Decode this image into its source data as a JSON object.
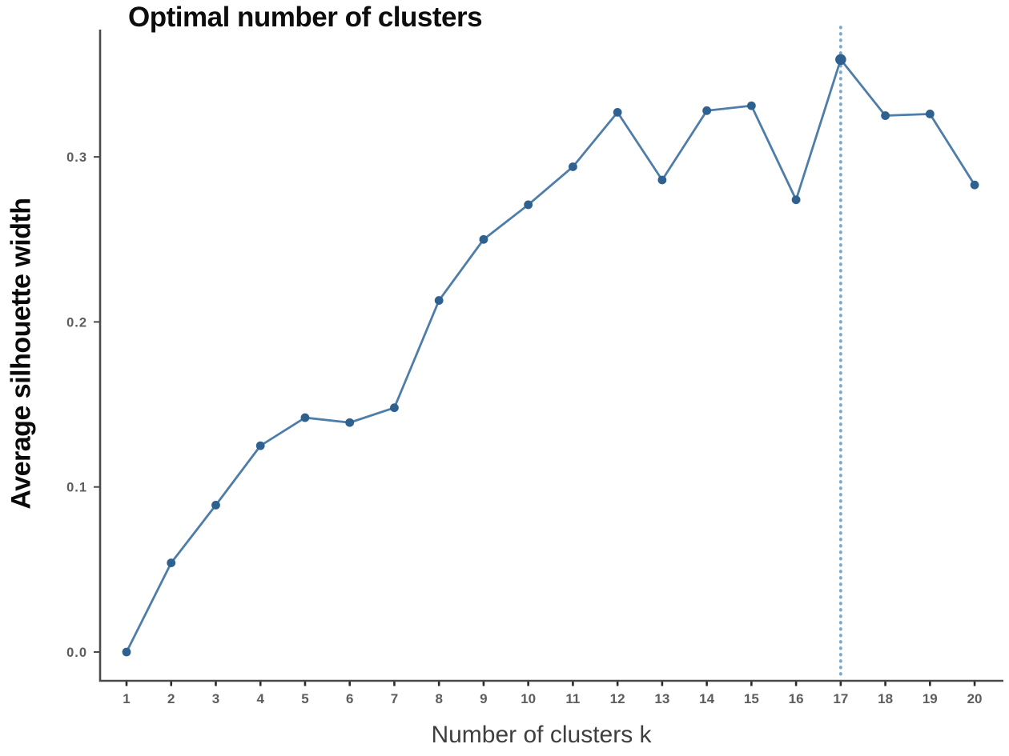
{
  "page": {
    "background": "#ffffff"
  },
  "chart_data": {
    "type": "line",
    "title": "Optimal number of clusters",
    "xlabel": "Number of clusters k",
    "ylabel": "Average silhouette width",
    "categories": [
      1,
      2,
      3,
      4,
      5,
      6,
      7,
      8,
      9,
      10,
      11,
      12,
      13,
      14,
      15,
      16,
      17,
      18,
      19,
      20
    ],
    "series": [
      {
        "name": "Average silhouette width",
        "values": [
          0.0,
          0.054,
          0.089,
          0.125,
          0.142,
          0.139,
          0.148,
          0.213,
          0.25,
          0.271,
          0.294,
          0.327,
          0.286,
          0.328,
          0.331,
          0.274,
          0.359,
          0.325,
          0.326,
          0.283
        ]
      }
    ],
    "ytick_labels": [
      "0.0",
      "0.1",
      "0.2",
      "0.3"
    ],
    "ytick_values": [
      0.0,
      0.1,
      0.2,
      0.3
    ],
    "ylim": [
      -0.018,
      0.377
    ],
    "xlim": [
      0.4,
      20.7
    ],
    "grid": false,
    "legend_position": "none",
    "vline": {
      "x": 17,
      "meaning": "optimal-number-of-clusters-marker",
      "style": "dotted"
    },
    "colors": {
      "line": "#4e7da9",
      "marker": "#2e6190",
      "vline": "#7fa7ca",
      "axis": "#4a4a4a",
      "x_tick_mark": "#2a2a2a",
      "tick_label": "#5d5d5d",
      "axis_title": "#3f3f3f",
      "title": "#0d0d0d",
      "background": "#ffffff"
    }
  }
}
